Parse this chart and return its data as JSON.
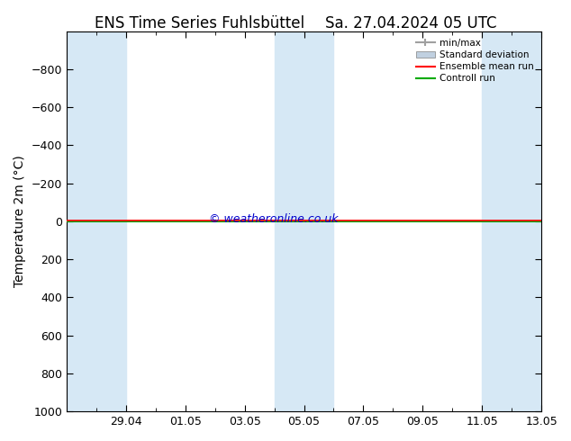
{
  "title_left": "ENS Time Series Fuhlsbüttel",
  "title_right": "Sa. 27.04.2024 05 UTC",
  "ylabel": "Temperature 2m (°C)",
  "ylim_bottom": 1000,
  "ylim_top": -1000,
  "yticks": [
    -800,
    -600,
    -400,
    -200,
    0,
    200,
    400,
    600,
    800,
    1000
  ],
  "xlim_min": 0,
  "xlim_max": 16,
  "xtick_labels": [
    "29.04",
    "01.05",
    "03.05",
    "05.05",
    "07.05",
    "09.05",
    "11.05",
    "13.05"
  ],
  "xtick_positions": [
    2,
    4,
    6,
    8,
    10,
    12,
    14,
    16
  ],
  "blue_columns": [
    {
      "x_start": 0,
      "x_end": 2
    },
    {
      "x_start": 7,
      "x_end": 9
    },
    {
      "x_start": 14,
      "x_end": 16
    }
  ],
  "green_line_y": 0,
  "red_line_y": 0,
  "watermark": "© weatheronline.co.uk",
  "watermark_color": "#0000cc",
  "background_color": "#ffffff",
  "plot_bg_color": "#ffffff",
  "blue_shade_color": "#d6e8f5",
  "legend_entries": [
    "min/max",
    "Standard deviation",
    "Ensemble mean run",
    "Controll run"
  ],
  "legend_colors": [
    "#a0a0a0",
    "#c0d0e0",
    "#ff0000",
    "#00aa00"
  ],
  "title_fontsize": 12,
  "axis_label_fontsize": 10,
  "tick_fontsize": 9
}
